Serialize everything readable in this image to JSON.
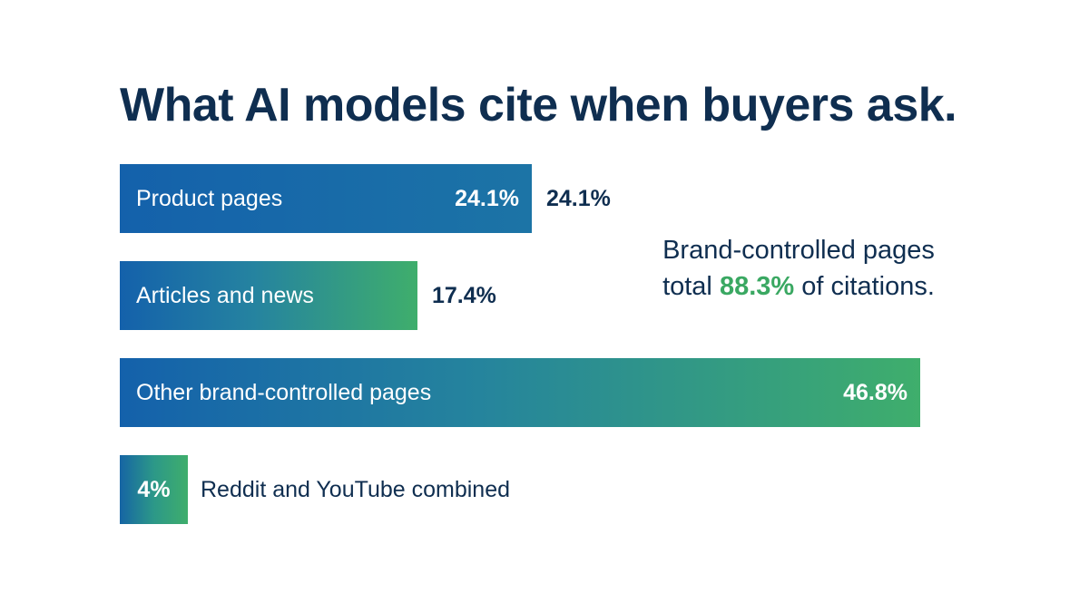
{
  "chart_data": {
    "type": "bar",
    "orientation": "horizontal",
    "title": "What AI models cite when buyers ask.",
    "categories": [
      "Product pages",
      "Articles and news",
      "Other brand-controlled pages",
      "Reddit and YouTube combined"
    ],
    "values": [
      24.1,
      17.4,
      46.8,
      4
    ],
    "value_labels": [
      "24.1%",
      "17.4%",
      "46.8%",
      "4%"
    ],
    "inside_value_labels": [
      "24.1%",
      "",
      "46.8%",
      "4%"
    ],
    "outside_value_labels": [
      "24.1%",
      "17.4%",
      "",
      ""
    ],
    "xlim": [
      0,
      100
    ],
    "grid": false,
    "colors": {
      "blue": "#1461ab",
      "green": "#3fae6c",
      "text": "#0f2e50"
    }
  },
  "annotation": {
    "line1": "Brand-controlled pages",
    "prefix": "total ",
    "highlight": "88.3%",
    "suffix": " of citations.",
    "highlight_color": "#3aa862"
  }
}
